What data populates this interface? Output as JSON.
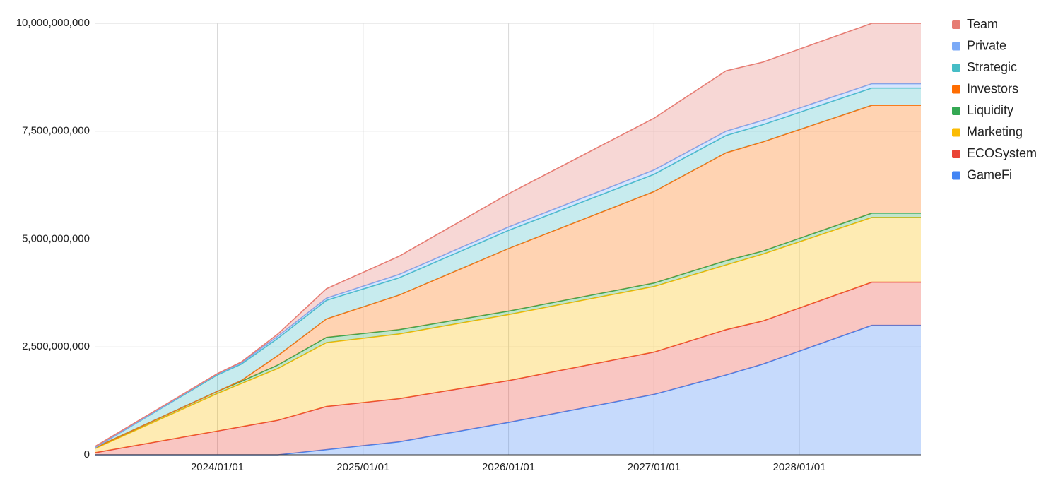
{
  "chart_data": {
    "type": "stacked-area",
    "x": [
      "2023/03/01",
      "2024/01/01",
      "2024/03/01",
      "2024/06/01",
      "2024/10/01",
      "2025/04/01",
      "2026/01/01",
      "2027/01/01",
      "2027/07/01",
      "2027/10/01",
      "2028/07/01",
      "2028/11/01"
    ],
    "xlim": [
      "2023/03/01",
      "2028/11/01"
    ],
    "xticks": [
      "2024/01/01",
      "2025/01/01",
      "2026/01/01",
      "2027/01/01",
      "2028/01/01"
    ],
    "ylim": [
      0,
      10000000000
    ],
    "yticks": [
      0,
      {
        "value": 2500000000,
        "label": "2,500,000,000"
      },
      {
        "value": 5000000000,
        "label": "5,000,000,000"
      },
      {
        "value": 7500000000,
        "label": "7,500,000,000"
      },
      {
        "value": 10000000000,
        "label": "10,000,000,000"
      }
    ],
    "grid": true,
    "legend": "right",
    "series": [
      {
        "name": "Team",
        "color": "#e67c73",
        "values": [
          30000000,
          10000000,
          20000000,
          50000000,
          220000000,
          420000000,
          770000000,
          1200000000,
          1400000000,
          1350000000,
          1400000000,
          1400000000
        ]
      },
      {
        "name": "Private",
        "color": "#7baaf7",
        "values": [
          0,
          20000000,
          30000000,
          50000000,
          50000000,
          80000000,
          80000000,
          100000000,
          100000000,
          100000000,
          100000000,
          100000000
        ]
      },
      {
        "name": "Strategic",
        "color": "#46bdc6",
        "values": [
          0,
          380000000,
          380000000,
          400000000,
          430000000,
          400000000,
          420000000,
          400000000,
          400000000,
          400000000,
          400000000,
          400000000
        ]
      },
      {
        "name": "Investors",
        "color": "#ff6d01",
        "values": [
          0,
          0,
          20000000,
          220000000,
          430000000,
          800000000,
          1450000000,
          2120000000,
          2500000000,
          2530000000,
          2500000000,
          2500000000
        ]
      },
      {
        "name": "Liquidity",
        "color": "#34a853",
        "values": [
          20000000,
          50000000,
          50000000,
          80000000,
          120000000,
          100000000,
          80000000,
          80000000,
          100000000,
          70000000,
          100000000,
          100000000
        ]
      },
      {
        "name": "Marketing",
        "color": "#fbbc04",
        "values": [
          100000000,
          870000000,
          1000000000,
          1200000000,
          1480000000,
          1500000000,
          1530000000,
          1520000000,
          1500000000,
          1550000000,
          1500000000,
          1500000000
        ]
      },
      {
        "name": "ECOSystem",
        "color": "#ea4335",
        "values": [
          50000000,
          550000000,
          650000000,
          800000000,
          1000000000,
          1000000000,
          970000000,
          980000000,
          1050000000,
          1000000000,
          1000000000,
          1000000000
        ]
      },
      {
        "name": "GameFi",
        "color": "#4285f4",
        "values": [
          0,
          0,
          0,
          0,
          120000000,
          300000000,
          750000000,
          1400000000,
          1850000000,
          2100000000,
          3000000000,
          3000000000
        ]
      }
    ]
  }
}
